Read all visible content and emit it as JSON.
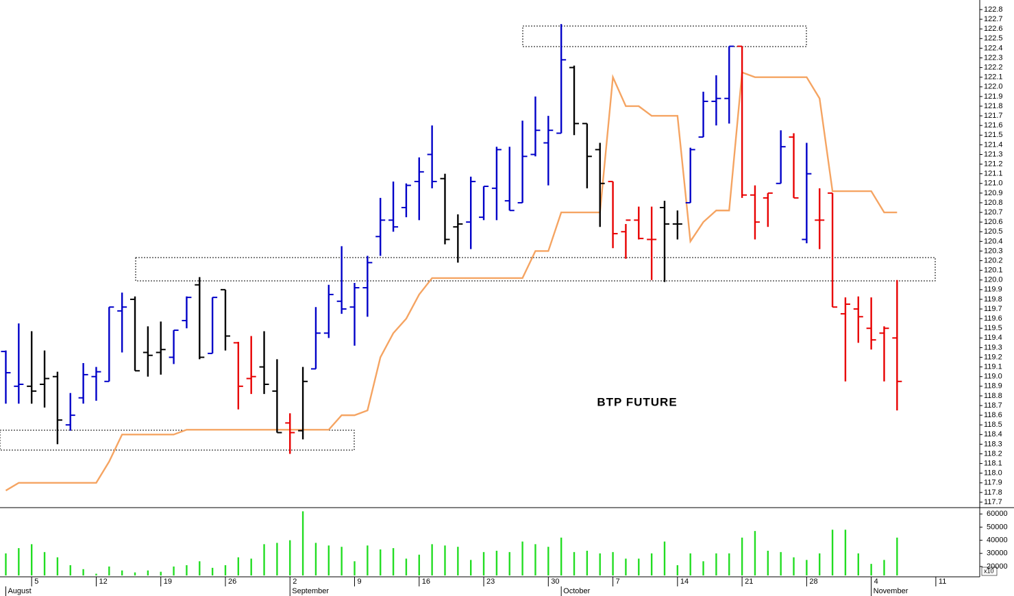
{
  "chart_data": {
    "type": "ohlc",
    "title": "BTP FUTURE",
    "xlim": [
      -0.45,
      75.4
    ],
    "xticks": [
      {
        "value": 2,
        "label": "5"
      },
      {
        "value": 7,
        "label": "12"
      },
      {
        "value": 12,
        "label": "19"
      },
      {
        "value": 17,
        "label": "26"
      },
      {
        "value": 22,
        "label": "2"
      },
      {
        "value": 27,
        "label": "9"
      },
      {
        "value": 32,
        "label": "16"
      },
      {
        "value": 37,
        "label": "23"
      },
      {
        "value": 42,
        "label": "30"
      },
      {
        "value": 47,
        "label": "7"
      },
      {
        "value": 52,
        "label": "14"
      },
      {
        "value": 57,
        "label": "21"
      },
      {
        "value": 62,
        "label": "28"
      },
      {
        "value": 67,
        "label": "4"
      },
      {
        "value": 72,
        "label": "11"
      }
    ],
    "months": [
      {
        "value": 0,
        "label": "August"
      },
      {
        "value": 22,
        "label": "September"
      },
      {
        "value": 43,
        "label": "October"
      },
      {
        "value": 67,
        "label": "November"
      }
    ],
    "ylim": [
      117.7,
      122.8
    ],
    "yticks": [
      117.7,
      117.8,
      117.9,
      {
        "value": 118,
        "label": "118.0"
      },
      118.1,
      118.2,
      118.3,
      118.4,
      118.5,
      118.6,
      118.7,
      118.8,
      118.9,
      {
        "value": 119,
        "label": "119.0"
      },
      119.1,
      119.2,
      119.3,
      119.4,
      119.5,
      119.6,
      119.7,
      119.8,
      119.9,
      {
        "value": 120,
        "label": "120.0"
      },
      120.1,
      120.2,
      120.3,
      120.4,
      120.5,
      120.6,
      120.7,
      120.8,
      120.9,
      {
        "value": 121,
        "label": "121.0"
      },
      121.1,
      121.2,
      121.3,
      121.4,
      121.5,
      121.6,
      121.7,
      121.8,
      121.9,
      {
        "value": 122,
        "label": "122.0"
      },
      122.1,
      122.2,
      122.3,
      122.4,
      122.5,
      122.6,
      122.7,
      122.8
    ],
    "open": [
      119.26,
      118.9,
      118.9,
      118.92,
      119.0,
      118.5,
      118.78,
      119.0,
      118.95,
      119.68,
      119.8,
      119.25,
      119.25,
      119.2,
      119.58,
      119.95,
      119.24,
      119.9,
      119.35,
      118.98,
      119.1,
      118.85,
      118.52,
      118.44,
      119.08,
      119.45,
      119.78,
      119.72,
      119.92,
      120.45,
      120.62,
      120.75,
      121.02,
      121.3,
      121.05,
      120.55,
      120.6,
      120.65,
      120.95,
      120.82,
      120.8,
      121.3,
      121.42,
      121.52,
      122.2,
      121.62,
      121.35,
      121.02,
      120.5,
      120.62,
      120.42,
      120.75,
      120.58,
      120.8,
      121.48,
      121.85,
      121.88,
      122.42,
      120.88,
      120.85,
      121.0,
      121.48,
      120.42,
      120.62,
      120.9,
      119.65,
      119.7,
      119.5,
      119.45,
      119.4
    ],
    "high": [
      119.27,
      119.55,
      119.47,
      119.27,
      119.05,
      118.83,
      119.14,
      119.1,
      119.72,
      119.87,
      119.83,
      119.52,
      119.57,
      119.48,
      119.83,
      120.03,
      119.82,
      119.9,
      119.36,
      119.42,
      119.47,
      119.18,
      118.62,
      119.1,
      119.72,
      119.95,
      120.35,
      119.97,
      120.25,
      120.85,
      121.02,
      121.0,
      121.27,
      121.6,
      121.1,
      120.68,
      121.07,
      120.97,
      121.38,
      121.38,
      121.65,
      121.9,
      121.7,
      122.65,
      122.22,
      121.62,
      121.42,
      121.02,
      120.58,
      120.76,
      120.76,
      120.82,
      120.72,
      121.37,
      121.95,
      122.12,
      122.42,
      122.42,
      120.98,
      120.9,
      121.55,
      121.52,
      121.42,
      120.95,
      120.9,
      119.82,
      119.83,
      119.82,
      119.52,
      120.0
    ],
    "low": [
      118.72,
      118.72,
      118.72,
      118.68,
      118.3,
      118.44,
      118.72,
      118.75,
      118.95,
      119.25,
      119.06,
      119.0,
      119.02,
      119.13,
      119.5,
      119.18,
      119.24,
      119.27,
      118.66,
      118.82,
      118.82,
      118.42,
      118.2,
      118.35,
      119.08,
      119.4,
      119.65,
      119.32,
      119.62,
      120.25,
      120.5,
      120.65,
      120.62,
      120.95,
      120.37,
      120.18,
      120.32,
      120.62,
      120.62,
      120.72,
      120.8,
      121.28,
      120.98,
      121.52,
      121.5,
      120.95,
      120.55,
      120.33,
      120.22,
      120.42,
      120.0,
      119.98,
      120.42,
      120.8,
      121.48,
      121.6,
      121.62,
      120.85,
      120.42,
      120.55,
      121.0,
      120.85,
      120.38,
      120.32,
      119.72,
      118.95,
      119.35,
      119.28,
      118.95,
      118.65
    ],
    "close": [
      119.04,
      118.92,
      118.85,
      118.98,
      118.55,
      118.6,
      119.02,
      119.05,
      119.72,
      119.72,
      119.06,
      119.22,
      119.28,
      119.48,
      119.82,
      119.2,
      119.82,
      119.42,
      118.9,
      119.0,
      118.92,
      118.42,
      118.42,
      118.95,
      119.45,
      119.85,
      119.7,
      119.92,
      120.18,
      120.62,
      120.55,
      120.98,
      121.12,
      121.02,
      120.42,
      120.58,
      121.02,
      120.97,
      121.35,
      120.72,
      121.28,
      121.55,
      121.55,
      122.28,
      121.62,
      121.28,
      121.0,
      120.48,
      120.62,
      120.43,
      120.42,
      120.58,
      120.58,
      121.35,
      121.85,
      121.88,
      122.42,
      120.88,
      120.6,
      120.9,
      121.38,
      120.85,
      121.1,
      120.62,
      119.72,
      119.75,
      119.62,
      119.38,
      119.5,
      118.95
    ],
    "colors": [
      "#0000c8",
      "#0000c8",
      "#000000",
      "#000000",
      "#000000",
      "#0000c8",
      "#0000c8",
      "#0000c8",
      "#0000c8",
      "#0000c8",
      "#000000",
      "#000000",
      "#000000",
      "#0000c8",
      "#0000c8",
      "#000000",
      "#0000c8",
      "#000000",
      "#e80000",
      "#e80000",
      "#000000",
      "#000000",
      "#e80000",
      "#000000",
      "#0000c8",
      "#0000c8",
      "#0000c8",
      "#0000c8",
      "#0000c8",
      "#0000c8",
      "#0000c8",
      "#0000c8",
      "#0000c8",
      "#0000c8",
      "#000000",
      "#000000",
      "#0000c8",
      "#0000c8",
      "#0000c8",
      "#0000c8",
      "#0000c8",
      "#0000c8",
      "#0000c8",
      "#0000c8",
      "#000000",
      "#000000",
      "#000000",
      "#e80000",
      "#e80000",
      "#e80000",
      "#e80000",
      "#000000",
      "#000000",
      "#0000c8",
      "#0000c8",
      "#0000c8",
      "#0000c8",
      "#e80000",
      "#e80000",
      "#e80000",
      "#0000c8",
      "#e80000",
      "#0000c8",
      "#e80000",
      "#e80000",
      "#e80000",
      "#e80000",
      "#e80000",
      "#e80000",
      "#e80000"
    ],
    "line": {
      "color": "#f5a462",
      "values": [
        117.82,
        117.9,
        117.9,
        117.9,
        117.9,
        117.9,
        117.9,
        117.9,
        118.12,
        118.4,
        118.4,
        118.4,
        118.4,
        118.4,
        118.45,
        118.45,
        118.45,
        118.45,
        118.45,
        118.45,
        118.45,
        118.45,
        118.45,
        118.45,
        118.45,
        118.45,
        118.6,
        118.6,
        118.65,
        119.2,
        119.45,
        119.6,
        119.85,
        120.02,
        120.02,
        120.02,
        120.02,
        120.02,
        120.02,
        120.02,
        120.02,
        120.3,
        120.3,
        120.7,
        120.7,
        120.7,
        120.7,
        122.1,
        121.8,
        121.8,
        121.7,
        121.7,
        121.7,
        120.4,
        120.6,
        120.72,
        120.72,
        122.15,
        122.1,
        122.1,
        122.1,
        122.1,
        122.1,
        121.88,
        120.92,
        120.92,
        120.92,
        120.92,
        120.7,
        120.7
      ]
    },
    "volume": {
      "color": "#22dd22",
      "multiplier": "x10",
      "ylim": [
        13200,
        64300
      ],
      "yticks": [
        20000,
        30000,
        40000,
        50000,
        60000
      ],
      "values": [
        30000,
        34000,
        37000,
        31000,
        27000,
        21000,
        18000,
        14500,
        20000,
        17000,
        15500,
        17000,
        16000,
        20000,
        21000,
        24000,
        19000,
        21000,
        27000,
        26000,
        37000,
        38000,
        40000,
        62000,
        38000,
        36000,
        35000,
        24000,
        36000,
        33000,
        34000,
        26000,
        29000,
        37000,
        36000,
        35000,
        25000,
        31000,
        32000,
        31000,
        39000,
        37000,
        35000,
        42000,
        31000,
        32000,
        30000,
        31000,
        26000,
        26000,
        30000,
        39000,
        21000,
        30000,
        24000,
        30000,
        30000,
        42000,
        47000,
        32000,
        31000,
        27000,
        25000,
        30000,
        48000,
        48000,
        30000,
        22000,
        25000,
        42000
      ]
    }
  }
}
